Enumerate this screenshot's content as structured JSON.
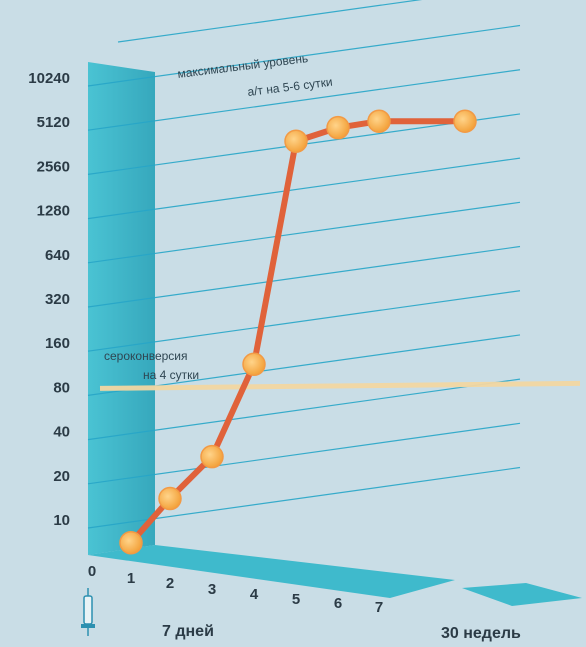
{
  "chart_data": {
    "type": "line",
    "y_scale": "log2",
    "y_ticks": [
      "10240",
      "5120",
      "2560",
      "1280",
      "640",
      "320",
      "160",
      "80",
      "40",
      "20",
      "10"
    ],
    "x_ticks": [
      "0",
      "1",
      "2",
      "3",
      "4",
      "5",
      "6",
      "7"
    ],
    "x_periods": [
      "7 дней",
      "30 недель"
    ],
    "series": [
      {
        "points": [
          {
            "x": "1",
            "y": 7
          },
          {
            "x": "2",
            "y": 14
          },
          {
            "x": "3",
            "y": 27
          },
          {
            "x": "4",
            "y": 115
          },
          {
            "x": "5",
            "y": 3800
          },
          {
            "x": "6",
            "y": 4700
          },
          {
            "x": "7",
            "y": 5200
          },
          {
            "x": "30 недель",
            "y": 5200
          }
        ]
      }
    ],
    "threshold_value": 80,
    "annotations": {
      "max_level": [
        "максимальный уровень",
        "а/т на 5-6 сутки"
      ],
      "seroconversion": [
        "сероконверсия",
        "на 4 сутки"
      ]
    },
    "colors": {
      "background": "#c9dde6",
      "wall": "#2fb1c4",
      "line": "#e0623a",
      "marker": "#f7b04a",
      "threshold": "#f3d7a2",
      "gridline": "#27a6c8"
    },
    "grid": true,
    "legend": "none"
  }
}
